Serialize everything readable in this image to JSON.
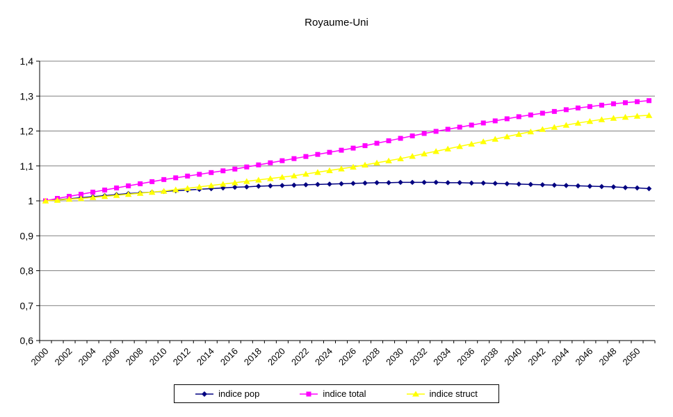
{
  "chart_data": {
    "type": "line",
    "title": "Royaume-Uni",
    "xlabel": "",
    "ylabel": "",
    "ylim": [
      0.6,
      1.4
    ],
    "grid": "horizontal",
    "legend_position": "bottom",
    "ytick_labels": [
      "0,6",
      "0,7",
      "0,8",
      "0,9",
      "1",
      "1,1",
      "1,2",
      "1,3",
      "1,4"
    ],
    "xtick_labels": [
      "2000",
      "2002",
      "2004",
      "2006",
      "2008",
      "2010",
      "2012",
      "2014",
      "2016",
      "2018",
      "2020",
      "2022",
      "2024",
      "2026",
      "2028",
      "2030",
      "2032",
      "2034",
      "2036",
      "2038",
      "2040",
      "2042",
      "2044",
      "2046",
      "2048",
      "2050"
    ],
    "x": [
      2000,
      2001,
      2002,
      2003,
      2004,
      2005,
      2006,
      2007,
      2008,
      2009,
      2010,
      2011,
      2012,
      2013,
      2014,
      2015,
      2016,
      2017,
      2018,
      2019,
      2020,
      2021,
      2022,
      2023,
      2024,
      2025,
      2026,
      2027,
      2028,
      2029,
      2030,
      2031,
      2032,
      2033,
      2034,
      2035,
      2036,
      2037,
      2038,
      2039,
      2040,
      2041,
      2042,
      2043,
      2044,
      2045,
      2046,
      2047,
      2048,
      2049,
      2050,
      2051
    ],
    "series": [
      {
        "name": "indice pop",
        "color": "#000080",
        "marker": "diamond",
        "values": [
          1.0,
          1.003,
          1.006,
          1.009,
          1.012,
          1.015,
          1.018,
          1.021,
          1.023,
          1.025,
          1.027,
          1.029,
          1.031,
          1.033,
          1.035,
          1.037,
          1.039,
          1.04,
          1.042,
          1.043,
          1.044,
          1.045,
          1.046,
          1.047,
          1.048,
          1.049,
          1.05,
          1.051,
          1.052,
          1.052,
          1.053,
          1.053,
          1.053,
          1.053,
          1.052,
          1.052,
          1.051,
          1.051,
          1.05,
          1.049,
          1.048,
          1.047,
          1.046,
          1.045,
          1.044,
          1.043,
          1.042,
          1.041,
          1.04,
          1.038,
          1.037,
          1.035
        ]
      },
      {
        "name": "indice total",
        "color": "#FF00FF",
        "marker": "square",
        "values": [
          1.0,
          1.007,
          1.013,
          1.019,
          1.025,
          1.031,
          1.037,
          1.043,
          1.049,
          1.055,
          1.061,
          1.066,
          1.071,
          1.076,
          1.081,
          1.086,
          1.091,
          1.097,
          1.103,
          1.109,
          1.115,
          1.121,
          1.127,
          1.133,
          1.139,
          1.145,
          1.151,
          1.158,
          1.165,
          1.172,
          1.179,
          1.186,
          1.193,
          1.199,
          1.205,
          1.211,
          1.217,
          1.223,
          1.229,
          1.235,
          1.241,
          1.246,
          1.251,
          1.256,
          1.261,
          1.266,
          1.27,
          1.274,
          1.278,
          1.281,
          1.284,
          1.287
        ]
      },
      {
        "name": "indice struct",
        "color": "#FFFF00",
        "marker": "triangle",
        "values": [
          1.0,
          1.002,
          1.005,
          1.007,
          1.01,
          1.013,
          1.016,
          1.019,
          1.022,
          1.025,
          1.028,
          1.032,
          1.036,
          1.04,
          1.044,
          1.048,
          1.052,
          1.056,
          1.06,
          1.064,
          1.068,
          1.072,
          1.077,
          1.082,
          1.087,
          1.092,
          1.097,
          1.103,
          1.109,
          1.115,
          1.121,
          1.128,
          1.135,
          1.142,
          1.149,
          1.156,
          1.163,
          1.17,
          1.177,
          1.184,
          1.191,
          1.198,
          1.205,
          1.211,
          1.217,
          1.223,
          1.228,
          1.233,
          1.237,
          1.24,
          1.243,
          1.245
        ]
      }
    ],
    "axis_color": "#000000",
    "grid_color": "#808080"
  }
}
